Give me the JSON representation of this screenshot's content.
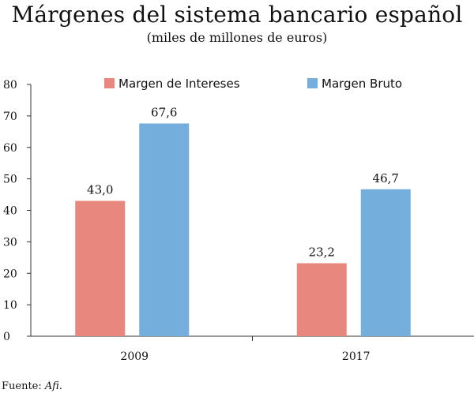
{
  "chart_data": {
    "type": "bar",
    "title": "Márgenes del sistema bancario español",
    "subtitle": "(miles de millones de euros)",
    "categories": [
      "2009",
      "2017"
    ],
    "series": [
      {
        "name": "Margen de Intereses",
        "values": [
          43.0,
          23.2
        ],
        "labels": [
          "43,0",
          "23,2"
        ],
        "color": "#E8877D"
      },
      {
        "name": "Margen Bruto",
        "values": [
          67.6,
          46.7
        ],
        "labels": [
          "67,6",
          "46,7"
        ],
        "color": "#74AEDD"
      }
    ],
    "ylim": [
      0,
      80
    ],
    "yticks": [
      "0",
      "10",
      "20",
      "30",
      "40",
      "50",
      "60",
      "70",
      "80"
    ],
    "grid": false,
    "legend_position": "top",
    "source": {
      "prefix": "Fuente:",
      "name": "Afi",
      "suffix": "."
    }
  }
}
